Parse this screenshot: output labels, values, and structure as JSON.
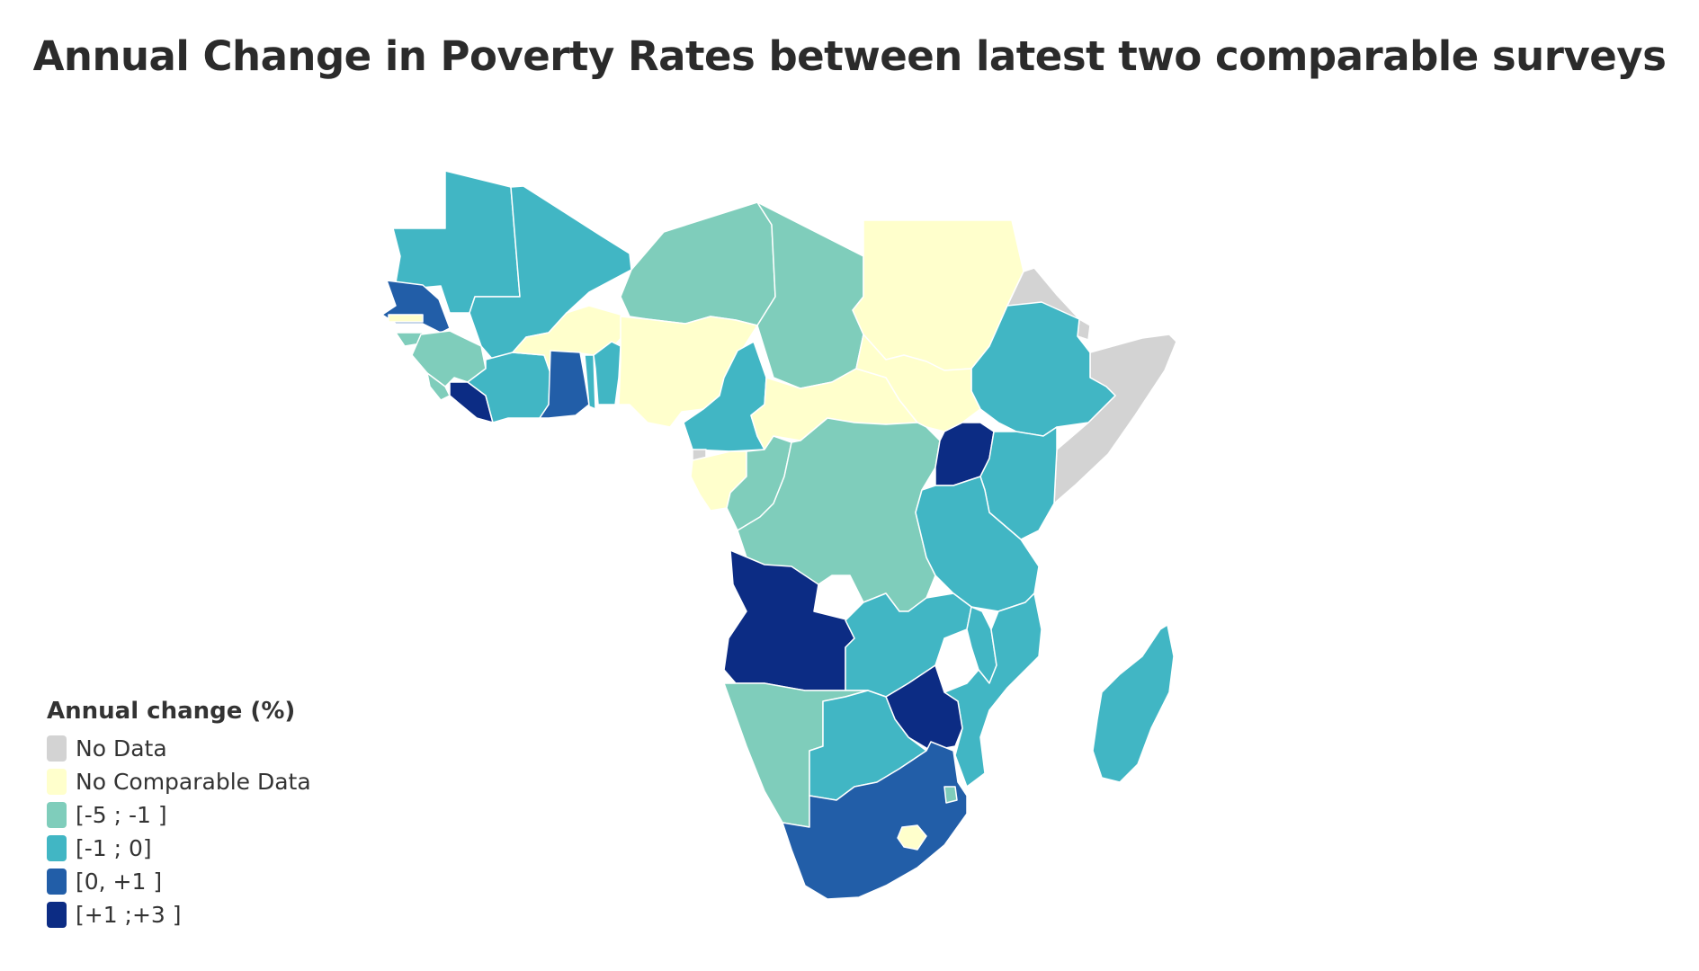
{
  "title": "Annual Change in Poverty Rates between latest two comparable surveys",
  "legend": {
    "title": "Annual change (%)",
    "items": [
      {
        "label": "No Data",
        "color": "#d3d3d3"
      },
      {
        "label": "No Comparable Data",
        "color": "#ffffcc"
      },
      {
        "label": "[-5 ; -1 ]",
        "color": "#7fcdbb"
      },
      {
        "label": "[-1 ; 0]",
        "color": "#41b6c4"
      },
      {
        "label": "[0, +1 ]",
        "color": "#225ea8"
      },
      {
        "label": "[+1 ;+3 ]",
        "color": "#0c2c84"
      }
    ]
  },
  "chart_data": {
    "type": "choropleth",
    "region": "Sub-Saharan Africa",
    "categories": [
      "No Data",
      "No Comparable Data",
      "[-5 ; -1 ]",
      "[-1 ; 0]",
      "[0, +1 ]",
      "[+1 ;+3 ]"
    ],
    "countries": [
      {
        "id": "MRT",
        "cat": "[-1 ; 0]"
      },
      {
        "id": "MLI",
        "cat": "[-1 ; 0]"
      },
      {
        "id": "NER",
        "cat": "[-5 ; -1 ]"
      },
      {
        "id": "TCD",
        "cat": "[-5 ; -1 ]"
      },
      {
        "id": "SDN",
        "cat": "No Comparable Data"
      },
      {
        "id": "ERI",
        "cat": "No Data"
      },
      {
        "id": "DJI",
        "cat": "No Data"
      },
      {
        "id": "SOM",
        "cat": "No Data"
      },
      {
        "id": "ETH",
        "cat": "[-1 ; 0]"
      },
      {
        "id": "SEN",
        "cat": "[0, +1 ]"
      },
      {
        "id": "GMB",
        "cat": "No Comparable Data"
      },
      {
        "id": "GNB",
        "cat": "[-5 ; -1 ]"
      },
      {
        "id": "GIN",
        "cat": "[-5 ; -1 ]"
      },
      {
        "id": "SLE",
        "cat": "[-5 ; -1 ]"
      },
      {
        "id": "LBR",
        "cat": "[+1 ;+3 ]"
      },
      {
        "id": "CIV",
        "cat": "[-1 ; 0]"
      },
      {
        "id": "BFA",
        "cat": "No Comparable Data"
      },
      {
        "id": "GHA",
        "cat": "[0, +1 ]"
      },
      {
        "id": "TGO",
        "cat": "[-1 ; 0]"
      },
      {
        "id": "BEN",
        "cat": "[-1 ; 0]"
      },
      {
        "id": "NGA",
        "cat": "No Comparable Data"
      },
      {
        "id": "CMR",
        "cat": "[-1 ; 0]"
      },
      {
        "id": "CAF",
        "cat": "No Comparable Data"
      },
      {
        "id": "SSD",
        "cat": "No Comparable Data"
      },
      {
        "id": "GNQ",
        "cat": "No Data"
      },
      {
        "id": "GAB",
        "cat": "No Comparable Data"
      },
      {
        "id": "COG",
        "cat": "[-5 ; -1 ]"
      },
      {
        "id": "COD",
        "cat": "[-5 ; -1 ]"
      },
      {
        "id": "UGA",
        "cat": "[+1 ;+3 ]"
      },
      {
        "id": "KEN",
        "cat": "[-1 ; 0]"
      },
      {
        "id": "RWA",
        "cat": "[-1 ; 0]"
      },
      {
        "id": "BDI",
        "cat": "[-1 ; 0]"
      },
      {
        "id": "TZA",
        "cat": "[-1 ; 0]"
      },
      {
        "id": "AGO",
        "cat": "[+1 ;+3 ]"
      },
      {
        "id": "ZMB",
        "cat": "[-1 ; 0]"
      },
      {
        "id": "MWI",
        "cat": "[-1 ; 0]"
      },
      {
        "id": "MOZ",
        "cat": "[-1 ; 0]"
      },
      {
        "id": "ZWE",
        "cat": "[+1 ;+3 ]"
      },
      {
        "id": "NAM",
        "cat": "[-5 ; -1 ]"
      },
      {
        "id": "BWA",
        "cat": "[-1 ; 0]"
      },
      {
        "id": "ZAF",
        "cat": "[0, +1 ]"
      },
      {
        "id": "LSO",
        "cat": "No Comparable Data"
      },
      {
        "id": "SWZ",
        "cat": "[-5 ; -1 ]"
      },
      {
        "id": "MDG",
        "cat": "[-1 ; 0]"
      }
    ]
  }
}
